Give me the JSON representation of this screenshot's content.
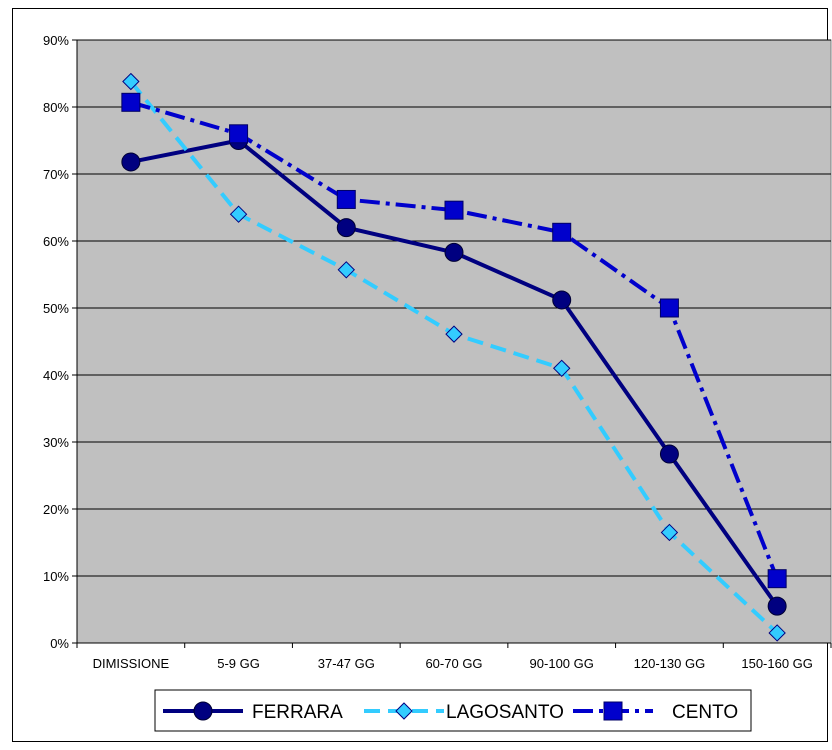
{
  "chart_data": {
    "type": "line",
    "title": "",
    "xlabel": "",
    "ylabel": "",
    "categories": [
      "DIMISSIONE",
      "5-9 GG",
      "37-47 GG",
      "60-70 GG",
      "90-100 GG",
      "120-130 GG",
      "150-160 GG"
    ],
    "ylim": [
      0,
      90
    ],
    "y_ticks": [
      "0%",
      "10%",
      "20%",
      "30%",
      "40%",
      "50%",
      "60%",
      "70%",
      "80%",
      "90%"
    ],
    "grid": "horizontal",
    "legend_position": "bottom",
    "plot_background": "#c0c0c0",
    "series": [
      {
        "name": "FERRARA",
        "color": "#000080",
        "marker": "circle",
        "dash": "solid",
        "values": [
          71.8,
          75.0,
          62.0,
          58.3,
          51.2,
          28.2,
          5.5
        ]
      },
      {
        "name": "LAGOSANTO",
        "color": "#33ccff",
        "marker": "diamond",
        "dash": "dashed",
        "values": [
          83.8,
          64.0,
          55.7,
          46.1,
          41.0,
          16.5,
          1.5
        ]
      },
      {
        "name": "CENTO",
        "color": "#0000cc",
        "marker": "square",
        "dash": "dashdot",
        "values": [
          80.7,
          76.0,
          66.2,
          64.6,
          61.3,
          50.0,
          9.6
        ]
      }
    ]
  }
}
